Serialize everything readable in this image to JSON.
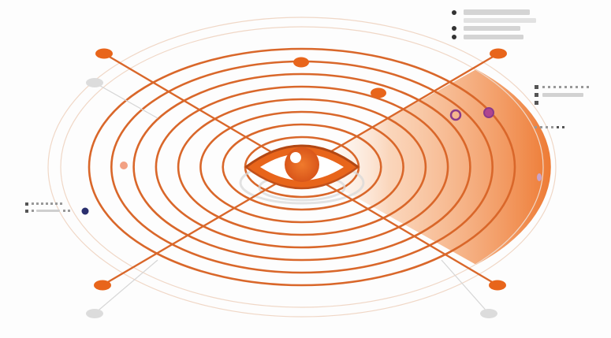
{
  "illustration": {
    "subject": "eye-icon",
    "ring_count": 8,
    "colors": {
      "accent": "#e8651b",
      "accent_light": "#f5a06a",
      "ring": "#d9672a",
      "ring_faint": "#f3c9ad",
      "node_purple": "#8a3a8a",
      "node_navy": "#2a2f6e",
      "placeholder": "#c9c9c9",
      "background": "#fdfdfd"
    },
    "legend_top_right": {
      "bullets": 3,
      "has_text": false
    },
    "legend_right": {
      "bullets": 2,
      "has_text": false
    },
    "legend_left": {
      "bullets": 2,
      "has_text": false
    }
  }
}
